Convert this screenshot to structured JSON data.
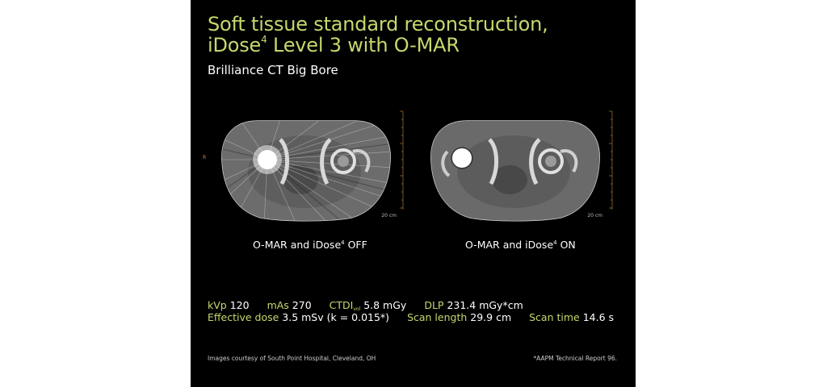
{
  "header": {
    "title_line1": "Soft tissue standard reconstruction,",
    "title_line2_pre": "iDose",
    "title_line2_sup": "4",
    "title_line2_post": " Level 3 with O-MAR",
    "subtitle": "Brilliance CT Big Bore"
  },
  "images": {
    "left": {
      "orientation": "R",
      "scale": "20 cm",
      "caption_pre": "O-MAR and iDose",
      "caption_sup": "4",
      "caption_post": " OFF"
    },
    "right": {
      "scale": "20 cm",
      "caption_pre": "O-MAR and iDose",
      "caption_sup": "4",
      "caption_post": " ON"
    }
  },
  "params": {
    "kvp_label": "kVp",
    "kvp_value": "120",
    "mas_label": "mAs",
    "mas_value": "270",
    "ctdi_label": "CTDI",
    "ctdi_sub": "vol",
    "ctdi_value": "5.8 mGy",
    "dlp_label": "DLP",
    "dlp_value": "231.4 mGy*cm",
    "dose_label": "Effective dose",
    "dose_value": "3.5 mSv (k = 0.015*)",
    "length_label": "Scan length",
    "length_value": "29.9 cm",
    "time_label": "Scan time",
    "time_value": "14.6 s"
  },
  "footer": {
    "credit": "Images courtesy of South Point Hospital, Cleveland, OH",
    "reference": "*AAPM Technical Report 96."
  },
  "colors": {
    "accent": "#c5d86d",
    "background": "#000000",
    "text": "#ffffff"
  }
}
